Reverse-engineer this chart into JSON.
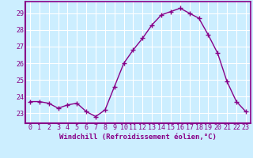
{
  "x": [
    0,
    1,
    2,
    3,
    4,
    5,
    6,
    7,
    8,
    9,
    10,
    11,
    12,
    13,
    14,
    15,
    16,
    17,
    18,
    19,
    20,
    21,
    22,
    23
  ],
  "y": [
    23.7,
    23.7,
    23.6,
    23.3,
    23.5,
    23.6,
    23.1,
    22.8,
    23.2,
    24.6,
    26.0,
    26.8,
    27.5,
    28.3,
    28.9,
    29.1,
    29.3,
    29.0,
    28.7,
    27.7,
    26.6,
    24.9,
    23.7,
    23.1
  ],
  "line_color": "#880088",
  "marker": "+",
  "marker_size": 4,
  "marker_linewidth": 1.0,
  "xlabel": "Windchill (Refroidissement éolien,°C)",
  "xlabel_fontsize": 6.5,
  "ylabel_ticks": [
    23,
    24,
    25,
    26,
    27,
    28,
    29
  ],
  "ylim": [
    22.4,
    29.7
  ],
  "xlim": [
    -0.5,
    23.5
  ],
  "bg_color": "#cceeff",
  "grid_color": "#ffffff",
  "tick_color": "#880088",
  "tick_fontsize": 6,
  "spine_color": "#880088",
  "linewidth": 1.0
}
